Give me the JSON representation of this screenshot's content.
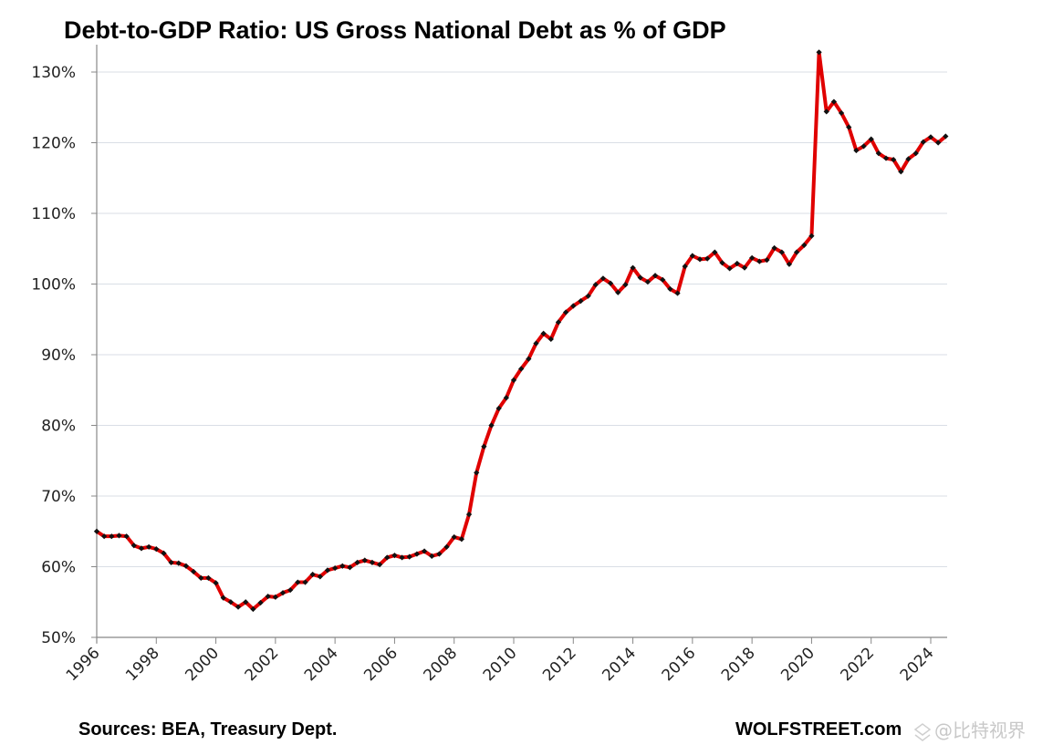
{
  "chart_data": {
    "type": "line",
    "title": "Debt-to-GDP Ratio: US Gross National Debt as % of GDP",
    "xlabel": "",
    "ylabel": "",
    "ylim": [
      50,
      130
    ],
    "y_ticks": [
      "50%",
      "60%",
      "70%",
      "80%",
      "90%",
      "100%",
      "110%",
      "120%",
      "130%"
    ],
    "y_tick_values": [
      50,
      60,
      70,
      80,
      90,
      100,
      110,
      120,
      130
    ],
    "x_ticks": [
      "1996",
      "1998",
      "2000",
      "2002",
      "2004",
      "2006",
      "2008",
      "2010",
      "2012",
      "2014",
      "2016",
      "2018",
      "2020",
      "2022",
      "2024"
    ],
    "x_start_year": 1996,
    "x_frequency": "quarterly",
    "grid": "horizontal",
    "legend": "none",
    "line_color": "#e00000",
    "marker_color": "#111111",
    "series": [
      {
        "name": "Gross National Debt as % of GDP",
        "values": [
          65.0,
          64.3,
          64.3,
          64.4,
          64.3,
          63.0,
          62.6,
          62.8,
          62.5,
          61.9,
          60.6,
          60.5,
          60.1,
          59.3,
          58.4,
          58.4,
          57.7,
          55.6,
          55.0,
          54.3,
          55.0,
          54.0,
          54.9,
          55.8,
          55.7,
          56.3,
          56.7,
          57.8,
          57.8,
          58.9,
          58.6,
          59.5,
          59.8,
          60.1,
          59.9,
          60.6,
          60.9,
          60.6,
          60.3,
          61.3,
          61.6,
          61.3,
          61.4,
          61.8,
          62.2,
          61.5,
          61.8,
          62.8,
          64.2,
          63.9,
          67.4,
          73.3,
          77.0,
          80.0,
          82.4,
          83.9,
          86.4,
          88.0,
          89.4,
          91.6,
          93.0,
          92.2,
          94.6,
          96.0,
          96.9,
          97.6,
          98.3,
          99.9,
          100.8,
          100.1,
          98.8,
          99.9,
          102.3,
          100.9,
          100.3,
          101.2,
          100.6,
          99.3,
          98.7,
          102.5,
          104.0,
          103.5,
          103.6,
          104.5,
          103.0,
          102.2,
          102.9,
          102.3,
          103.7,
          103.2,
          103.4,
          105.1,
          104.5,
          102.8,
          104.5,
          105.5,
          106.8,
          132.8,
          124.4,
          125.8,
          124.2,
          122.2,
          118.9,
          119.5,
          120.5,
          118.5,
          117.8,
          117.6,
          115.9,
          117.7,
          118.5,
          120.1,
          120.8,
          120.0,
          120.9
        ]
      }
    ],
    "annotations": {
      "source": "Sources: BEA, Treasury Dept.",
      "credit": "WOLFSTREET.com",
      "watermark": "@比特视界"
    }
  }
}
